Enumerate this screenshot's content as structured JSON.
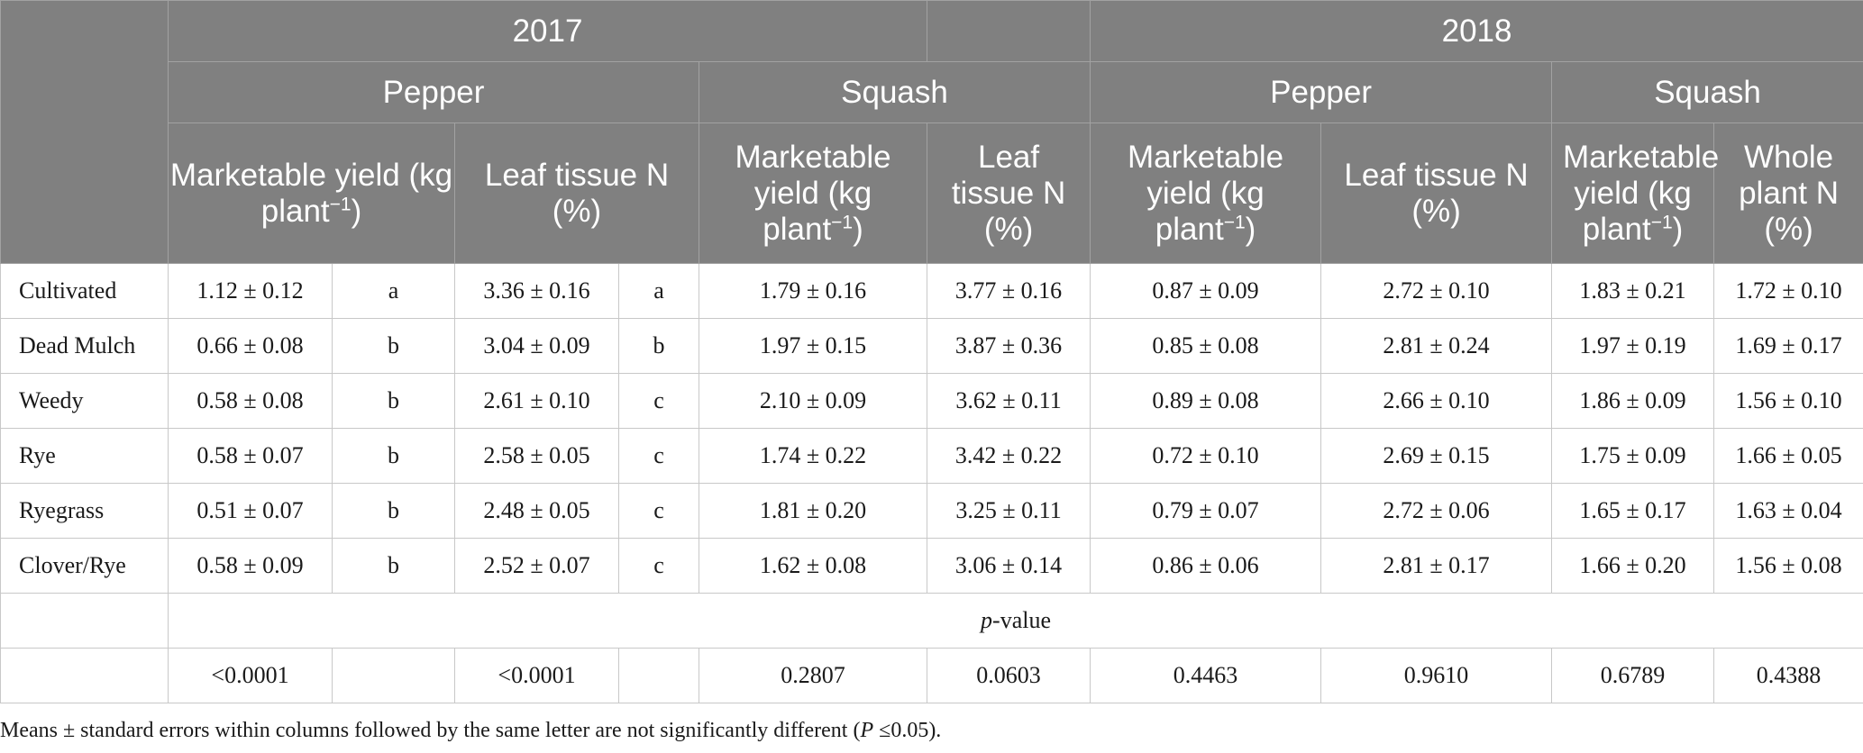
{
  "header": {
    "year_2017": "2017",
    "year_2018": "2018",
    "crops": [
      "Pepper",
      "Squash",
      "Pepper",
      "Squash"
    ],
    "metrics": {
      "yield_main": "Marketable yield (kg plant",
      "yield_sup": "−1",
      "yield_close": ")",
      "leaf_n": "Leaf tissue N (%)",
      "whole_n": "Whole plant N (%)"
    }
  },
  "rows": [
    {
      "label": "Cultivated",
      "c1": "1.12 ± 0.12",
      "c1l": "a",
      "c2": "3.36 ± 0.16",
      "c2l": "a",
      "c3": "1.79 ± 0.16",
      "c4": "3.77 ± 0.16",
      "c5": "0.87 ± 0.09",
      "c6": "2.72 ± 0.10",
      "c7": "1.83 ± 0.21",
      "c8": "1.72 ± 0.10"
    },
    {
      "label": "Dead Mulch",
      "c1": "0.66 ± 0.08",
      "c1l": "b",
      "c2": "3.04 ± 0.09",
      "c2l": "b",
      "c3": "1.97 ± 0.15",
      "c4": "3.87 ± 0.36",
      "c5": "0.85 ± 0.08",
      "c6": "2.81 ± 0.24",
      "c7": "1.97 ± 0.19",
      "c8": "1.69 ± 0.17"
    },
    {
      "label": "Weedy",
      "c1": "0.58 ± 0.08",
      "c1l": "b",
      "c2": "2.61 ± 0.10",
      "c2l": "c",
      "c3": "2.10 ± 0.09",
      "c4": "3.62 ± 0.11",
      "c5": "0.89 ± 0.08",
      "c6": "2.66 ± 0.10",
      "c7": "1.86 ± 0.09",
      "c8": "1.56 ± 0.10"
    },
    {
      "label": "Rye",
      "c1": "0.58 ± 0.07",
      "c1l": "b",
      "c2": "2.58 ± 0.05",
      "c2l": "c",
      "c3": "1.74 ± 0.22",
      "c4": "3.42 ± 0.22",
      "c5": "0.72 ± 0.10",
      "c6": "2.69 ± 0.15",
      "c7": "1.75 ± 0.09",
      "c8": "1.66 ± 0.05"
    },
    {
      "label": "Ryegrass",
      "c1": "0.51 ± 0.07",
      "c1l": "b",
      "c2": "2.48 ± 0.05",
      "c2l": "c",
      "c3": "1.81 ± 0.20",
      "c4": "3.25 ± 0.11",
      "c5": "0.79 ± 0.07",
      "c6": "2.72 ± 0.06",
      "c7": "1.65 ± 0.17",
      "c8": "1.63 ± 0.04"
    },
    {
      "label": "Clover/Rye",
      "c1": "0.58 ± 0.09",
      "c1l": "b",
      "c2": "2.52 ± 0.07",
      "c2l": "c",
      "c3": "1.62 ± 0.08",
      "c4": "3.06 ± 0.14",
      "c5": "0.86 ± 0.06",
      "c6": "2.81 ± 0.17",
      "c7": "1.66 ± 0.20",
      "c8": "1.56 ± 0.08"
    }
  ],
  "pvalue": {
    "label_italic": "p",
    "label_rest": "-value",
    "values": [
      "<0.0001",
      "<0.0001",
      "0.2807",
      "0.0603",
      "0.4463",
      "0.9610",
      "0.6789",
      "0.4388"
    ]
  },
  "footnote": {
    "text": "Means ± standard errors within columns followed by the same letter are not significantly different (",
    "italic": "P",
    "tail": " ≤0.05)."
  }
}
